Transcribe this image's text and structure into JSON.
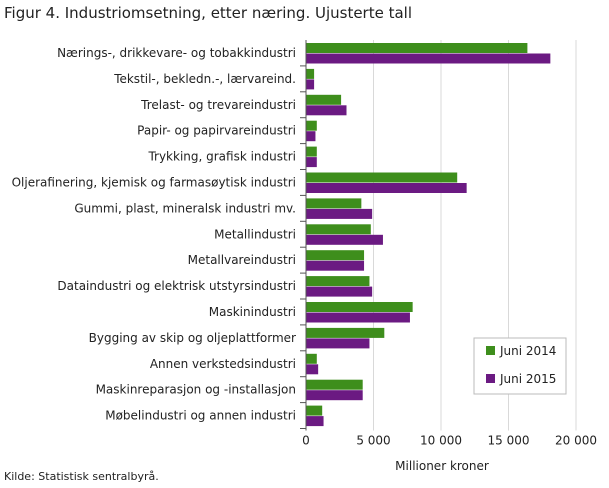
{
  "chart_data": {
    "type": "bar",
    "orientation": "horizontal",
    "title": "Figur 4. Industriomsetning, etter næring. Ujusterte tall",
    "xlabel": "Millioner kroner",
    "ylabel": "",
    "xlim": [
      0,
      20000
    ],
    "xticks": [
      0,
      5000,
      10000,
      15000,
      20000
    ],
    "xtick_labels": [
      "0",
      "5 000",
      "10 000",
      "15 000",
      "20 000"
    ],
    "grid": "vertical",
    "legend_position": "bottom-right",
    "categories": [
      "Nærings-, drikkevare- og tobakkindustri",
      "Tekstil-, bekledn.-, lærvareind.",
      "Trelast- og trevareindustri",
      "Papir- og papirvareindustri",
      "Trykking, grafisk industri",
      "Oljerafinering, kjemisk og farmasøytisk industri",
      "Gummi, plast, mineralsk industri mv.",
      "Metallindustri",
      "Metallvareindustri",
      "Dataindustri og elektrisk utstyrsindustri",
      "Maskinindustri",
      "Bygging av skip og oljeplattformer",
      "Annen verkstedsindustri",
      "Maskinreparasjon og -installasjon",
      "Møbelindustri og annen industri"
    ],
    "series": [
      {
        "name": "Juni 2014",
        "color": "#3e8e1c",
        "values": [
          16400,
          600,
          2600,
          800,
          800,
          11200,
          4100,
          4800,
          4300,
          4700,
          7900,
          5800,
          800,
          4200,
          1200
        ]
      },
      {
        "name": "Juni 2015",
        "color": "#6b1a82",
        "values": [
          18100,
          600,
          3000,
          700,
          800,
          11900,
          4900,
          5700,
          4300,
          4900,
          7700,
          4700,
          900,
          4200,
          1300
        ]
      }
    ]
  },
  "source": "Kilde: Statistisk sentralbyrå."
}
